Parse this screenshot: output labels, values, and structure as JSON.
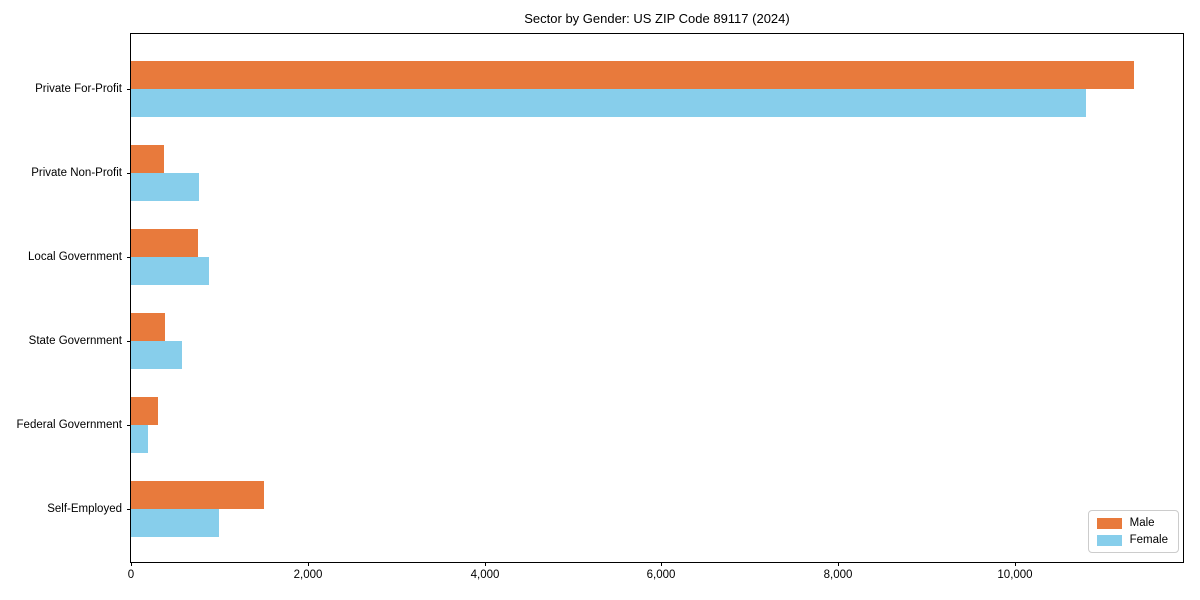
{
  "chart_data": {
    "type": "bar",
    "orientation": "horizontal",
    "title": "Sector by Gender: US ZIP Code 89117 (2024)",
    "categories": [
      "Private For-Profit",
      "Private Non-Profit",
      "Local Government",
      "State Government",
      "Federal Government",
      "Self-Employed"
    ],
    "series": [
      {
        "name": "Male",
        "color": "#e87a3c",
        "values": [
          11350,
          370,
          760,
          390,
          310,
          1500
        ]
      },
      {
        "name": "Female",
        "color": "#87ceeb",
        "values": [
          10800,
          770,
          880,
          580,
          190,
          1000
        ]
      }
    ],
    "xlabel": "",
    "ylabel": "",
    "xlim": [
      0,
      11900
    ],
    "xticks": [
      0,
      2000,
      4000,
      6000,
      8000,
      10000
    ],
    "xtick_labels": [
      "0",
      "2,000",
      "4,000",
      "6,000",
      "8,000",
      "10,000"
    ],
    "grid": false,
    "legend_position": "lower right",
    "axis_color": "#000000"
  }
}
